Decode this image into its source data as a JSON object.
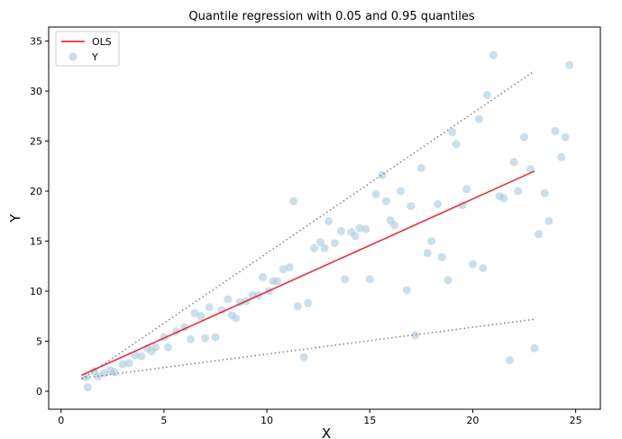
{
  "chart_data": {
    "type": "scatter",
    "title": "Quantile regression with 0.05 and 0.95 quantiles",
    "xlabel": "X",
    "ylabel": "Y",
    "xlim": [
      -0.6,
      26.2
    ],
    "ylim": [
      -1.8,
      36.4
    ],
    "xticks": [
      0,
      5,
      10,
      15,
      20,
      25
    ],
    "yticks": [
      0,
      5,
      10,
      15,
      20,
      25,
      30,
      35
    ],
    "grid": false,
    "legend": {
      "placement": "top-left",
      "entries": [
        "OLS",
        "Y"
      ]
    },
    "colors": {
      "ols": "#e8303a",
      "scatter": "#9ec4da",
      "quantile": "#808080"
    },
    "ols_line": {
      "name": "OLS",
      "x": [
        1.0,
        23.0
      ],
      "y": [
        1.6,
        22.0
      ]
    },
    "quantile_lines": [
      {
        "x": [
          1.0,
          23.0
        ],
        "y": [
          1.2,
          32.0
        ]
      },
      {
        "x": [
          1.0,
          23.0
        ],
        "y": [
          1.3,
          7.2
        ]
      }
    ],
    "scatter": {
      "name": "Y",
      "points": [
        [
          1.2,
          1.4
        ],
        [
          1.3,
          0.4
        ],
        [
          1.6,
          2.0
        ],
        [
          1.8,
          1.5
        ],
        [
          2.1,
          1.8
        ],
        [
          2.4,
          2.1
        ],
        [
          2.6,
          1.9
        ],
        [
          3.0,
          2.7
        ],
        [
          3.3,
          2.8
        ],
        [
          3.6,
          3.6
        ],
        [
          3.9,
          3.5
        ],
        [
          4.2,
          4.3
        ],
        [
          4.4,
          4.0
        ],
        [
          4.6,
          4.4
        ],
        [
          5.0,
          5.4
        ],
        [
          5.2,
          4.4
        ],
        [
          5.6,
          6.0
        ],
        [
          6.0,
          6.4
        ],
        [
          6.3,
          5.2
        ],
        [
          6.5,
          7.8
        ],
        [
          6.8,
          7.5
        ],
        [
          7.0,
          5.3
        ],
        [
          7.2,
          8.4
        ],
        [
          7.5,
          5.4
        ],
        [
          7.8,
          8.1
        ],
        [
          8.1,
          9.2
        ],
        [
          8.3,
          7.6
        ],
        [
          8.5,
          7.3
        ],
        [
          8.7,
          8.9
        ],
        [
          9.0,
          9.0
        ],
        [
          9.3,
          9.6
        ],
        [
          9.6,
          9.6
        ],
        [
          9.8,
          11.4
        ],
        [
          10.1,
          10.0
        ],
        [
          10.3,
          11.0
        ],
        [
          10.5,
          11.0
        ],
        [
          10.8,
          12.2
        ],
        [
          11.1,
          12.4
        ],
        [
          11.3,
          19.0
        ],
        [
          11.5,
          8.5
        ],
        [
          11.8,
          3.4
        ],
        [
          12.0,
          8.8
        ],
        [
          12.3,
          14.3
        ],
        [
          12.6,
          14.9
        ],
        [
          12.8,
          14.3
        ],
        [
          13.0,
          17.0
        ],
        [
          13.3,
          14.8
        ],
        [
          13.6,
          16.0
        ],
        [
          13.8,
          11.2
        ],
        [
          14.1,
          15.9
        ],
        [
          14.3,
          15.5
        ],
        [
          14.5,
          16.3
        ],
        [
          14.8,
          16.2
        ],
        [
          15.0,
          11.2
        ],
        [
          15.3,
          19.7
        ],
        [
          15.6,
          21.6
        ],
        [
          15.8,
          19.0
        ],
        [
          16.0,
          17.1
        ],
        [
          16.2,
          16.6
        ],
        [
          16.5,
          20.0
        ],
        [
          16.8,
          10.1
        ],
        [
          17.0,
          18.5
        ],
        [
          17.2,
          5.6
        ],
        [
          17.5,
          22.3
        ],
        [
          17.8,
          13.8
        ],
        [
          18.0,
          15.0
        ],
        [
          18.3,
          18.7
        ],
        [
          18.5,
          13.4
        ],
        [
          18.8,
          11.1
        ],
        [
          19.0,
          25.9
        ],
        [
          19.2,
          24.7
        ],
        [
          19.5,
          18.6
        ],
        [
          19.7,
          20.2
        ],
        [
          20.0,
          12.7
        ],
        [
          20.3,
          27.2
        ],
        [
          20.5,
          12.3
        ],
        [
          20.7,
          29.6
        ],
        [
          21.0,
          33.6
        ],
        [
          21.3,
          19.5
        ],
        [
          21.5,
          19.3
        ],
        [
          21.8,
          3.1
        ],
        [
          22.0,
          22.9
        ],
        [
          22.2,
          20.0
        ],
        [
          22.5,
          25.4
        ],
        [
          22.8,
          22.2
        ],
        [
          23.0,
          4.3
        ],
        [
          23.2,
          15.7
        ],
        [
          23.5,
          19.8
        ],
        [
          23.7,
          17.0
        ],
        [
          24.0,
          26.0
        ],
        [
          24.3,
          23.4
        ],
        [
          24.5,
          25.4
        ],
        [
          24.7,
          32.6
        ]
      ]
    }
  }
}
